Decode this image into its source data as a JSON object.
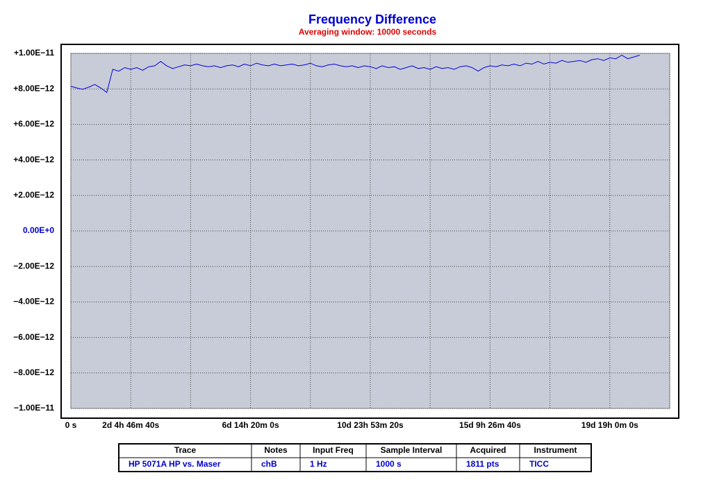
{
  "chart_data": {
    "type": "line",
    "title": "Frequency Difference",
    "subtitle": "Averaging window: 10000 seconds",
    "x": [
      0,
      19000,
      38000,
      57000,
      76000,
      95000,
      114000,
      133000,
      152000,
      171000,
      190000,
      209000,
      228000,
      247000,
      266000,
      285000,
      304000,
      323000,
      342000,
      361000,
      380000,
      399000,
      418000,
      437000,
      456000,
      475000,
      494000,
      513000,
      532000,
      551000,
      570000,
      589000,
      608000,
      627000,
      646000,
      665000,
      684000,
      703000,
      722000,
      741000,
      760000,
      779000,
      798000,
      817000,
      836000,
      855000,
      874000,
      893000,
      912000,
      931000,
      950000,
      969000,
      988000,
      1007000,
      1026000,
      1045000,
      1064000,
      1083000,
      1102000,
      1121000,
      1140000,
      1159000,
      1178000,
      1197000,
      1216000,
      1235000,
      1254000,
      1273000,
      1292000,
      1311000,
      1330000,
      1349000,
      1368000,
      1387000,
      1406000,
      1425000,
      1444000,
      1463000,
      1482000,
      1501000,
      1520000,
      1539000,
      1558000,
      1577000,
      1596000,
      1615000,
      1634000,
      1653000,
      1672000,
      1691000,
      1710000,
      1729000,
      1748000,
      1767000,
      1786000,
      1805000
    ],
    "series": [
      {
        "name": "HP 5071A HP vs. Maser",
        "color": "#0000dd",
        "values": [
          8.15e-12,
          8.05e-12,
          7.98e-12,
          8.1e-12,
          8.25e-12,
          8.05e-12,
          7.8e-12,
          9.1e-12,
          9e-12,
          9.2e-12,
          9.1e-12,
          9.2e-12,
          9.05e-12,
          9.25e-12,
          9.3e-12,
          9.55e-12,
          9.3e-12,
          9.15e-12,
          9.25e-12,
          9.35e-12,
          9.3e-12,
          9.4e-12,
          9.3e-12,
          9.25e-12,
          9.3e-12,
          9.2e-12,
          9.3e-12,
          9.35e-12,
          9.25e-12,
          9.4e-12,
          9.3e-12,
          9.45e-12,
          9.35e-12,
          9.3e-12,
          9.4e-12,
          9.3e-12,
          9.35e-12,
          9.4e-12,
          9.3e-12,
          9.35e-12,
          9.45e-12,
          9.3e-12,
          9.25e-12,
          9.35e-12,
          9.4e-12,
          9.3e-12,
          9.25e-12,
          9.3e-12,
          9.2e-12,
          9.3e-12,
          9.25e-12,
          9.15e-12,
          9.3e-12,
          9.2e-12,
          9.25e-12,
          9.1e-12,
          9.2e-12,
          9.3e-12,
          9.15e-12,
          9.2e-12,
          9.1e-12,
          9.25e-12,
          9.15e-12,
          9.2e-12,
          9.1e-12,
          9.25e-12,
          9.3e-12,
          9.2e-12,
          9e-12,
          9.2e-12,
          9.3e-12,
          9.25e-12,
          9.35e-12,
          9.3e-12,
          9.4e-12,
          9.3e-12,
          9.45e-12,
          9.4e-12,
          9.55e-12,
          9.4e-12,
          9.5e-12,
          9.45e-12,
          9.6e-12,
          9.5e-12,
          9.55e-12,
          9.6e-12,
          9.5e-12,
          9.65e-12,
          9.7e-12,
          9.6e-12,
          9.75e-12,
          9.7e-12,
          9.9e-12,
          9.7e-12,
          9.8e-12,
          9.9e-12
        ]
      }
    ],
    "xlim": [
      0,
      1900000
    ],
    "xticks": [
      {
        "value": 0,
        "label": "0 s"
      },
      {
        "value": 190000,
        "label": "2d 4h 46m 40s"
      },
      {
        "value": 570000,
        "label": "6d 14h 20m 0s"
      },
      {
        "value": 950000,
        "label": "10d 23h 53m 20s"
      },
      {
        "value": 1330000,
        "label": "15d 9h 26m 40s"
      },
      {
        "value": 1710000,
        "label": "19d 19h 0m 0s"
      }
    ],
    "x_minor_ticks": [
      380000,
      760000,
      1140000,
      1520000,
      1900000
    ],
    "ylim": [
      -1e-11,
      1e-11
    ],
    "yticks": [
      {
        "value": 1e-11,
        "label": "+1.00E−11"
      },
      {
        "value": 8e-12,
        "label": "+8.00E−12"
      },
      {
        "value": 6e-12,
        "label": "+6.00E−12"
      },
      {
        "value": 4e-12,
        "label": "+4.00E−12"
      },
      {
        "value": 2e-12,
        "label": "+2.00E−12"
      },
      {
        "value": 0,
        "label": "0.00E+0"
      },
      {
        "value": -2e-12,
        "label": "−2.00E−12"
      },
      {
        "value": -4e-12,
        "label": "−4.00E−12"
      },
      {
        "value": -6e-12,
        "label": "−6.00E−12"
      },
      {
        "value": -8e-12,
        "label": "−8.00E−12"
      },
      {
        "value": -1e-11,
        "label": "−1.00E−11"
      }
    ],
    "grid": true,
    "zero_label_color": "#0000cc",
    "plot_background": "#c8ccd8"
  },
  "table": {
    "headers": [
      "Trace",
      "Notes",
      "Input Freq",
      "Sample Interval",
      "Acquired",
      "Instrument"
    ],
    "rows": [
      [
        "HP 5071A HP vs. Maser",
        "chB",
        "1 Hz",
        "1000 s",
        "1811 pts",
        "TICC"
      ]
    ]
  }
}
